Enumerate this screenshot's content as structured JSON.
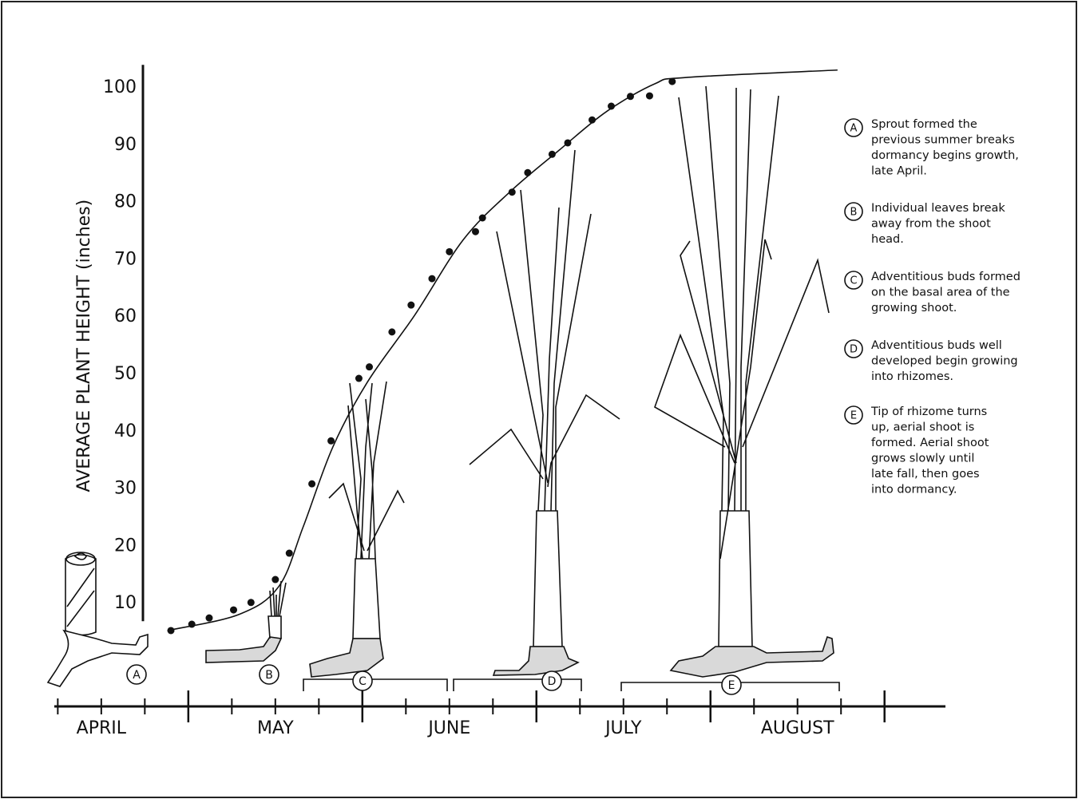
{
  "chart_data": {
    "type": "scatter",
    "y_label": "AVERAGE PLANT HEIGHT (inches)",
    "ylim": [
      0,
      104
    ],
    "yticks": [
      10,
      20,
      30,
      40,
      50,
      60,
      70,
      80,
      90,
      100
    ],
    "xlim": [
      0.23,
      5.35
    ],
    "xticks": [
      {
        "value": 0.5,
        "label": "APRIL"
      },
      {
        "value": 1.5,
        "label": "MAY"
      },
      {
        "value": 2.5,
        "label": "JUNE"
      },
      {
        "value": 3.5,
        "label": "JULY"
      },
      {
        "value": 4.5,
        "label": "AUGUST"
      }
    ],
    "series": [
      {
        "type": "scatter",
        "color": "#111111",
        "x": [
          0.9,
          1.02,
          1.12,
          1.26,
          1.36,
          1.5,
          1.58,
          1.71,
          1.82,
          1.98,
          2.04,
          2.17,
          2.28,
          2.4,
          2.5,
          2.65,
          2.69,
          2.86,
          2.95,
          3.09,
          3.18,
          3.32,
          3.43,
          3.54,
          3.65,
          3.78
        ],
        "values": [
          5.3,
          6.4,
          7.5,
          8.9,
          10.2,
          14.2,
          18.8,
          30.9,
          38.4,
          49.3,
          51.3,
          57.4,
          62.1,
          66.7,
          71.4,
          74.9,
          77.3,
          81.8,
          85.2,
          88.4,
          90.4,
          94.4,
          96.8,
          98.5,
          98.6,
          101.1
        ]
      },
      {
        "type": "line",
        "color": "#111111",
        "x": [
          0.88,
          1.29,
          1.52,
          1.66,
          1.83,
          2.03,
          2.3,
          2.58,
          2.85,
          3.13,
          3.4,
          3.68,
          3.86,
          4.73
        ],
        "values": [
          5.3,
          8.1,
          13.0,
          23.4,
          37.3,
          48.7,
          60.3,
          73.5,
          81.9,
          89.1,
          95.8,
          100.7,
          101.8,
          103.1
        ]
      }
    ],
    "annotations": [
      {
        "letter": "A",
        "lines": [
          "Sprout formed the",
          "previous summer breaks",
          "dormancy begins growth,",
          "late April."
        ]
      },
      {
        "letter": "B",
        "lines": [
          "Individual leaves break",
          "away from the shoot",
          "head."
        ]
      },
      {
        "letter": "C",
        "lines": [
          "Adventitious buds formed",
          "on the basal area of the",
          "growing shoot."
        ]
      },
      {
        "letter": "D",
        "lines": [
          "Adventitious buds well",
          "developed begin growing",
          "into rhizomes."
        ]
      },
      {
        "letter": "E",
        "lines": [
          "Tip of rhizome turns",
          "up, aerial shoot is",
          "formed. Aerial shoot",
          "grows slowly until",
          "late fall, then goes",
          "into dormancy."
        ]
      }
    ]
  }
}
